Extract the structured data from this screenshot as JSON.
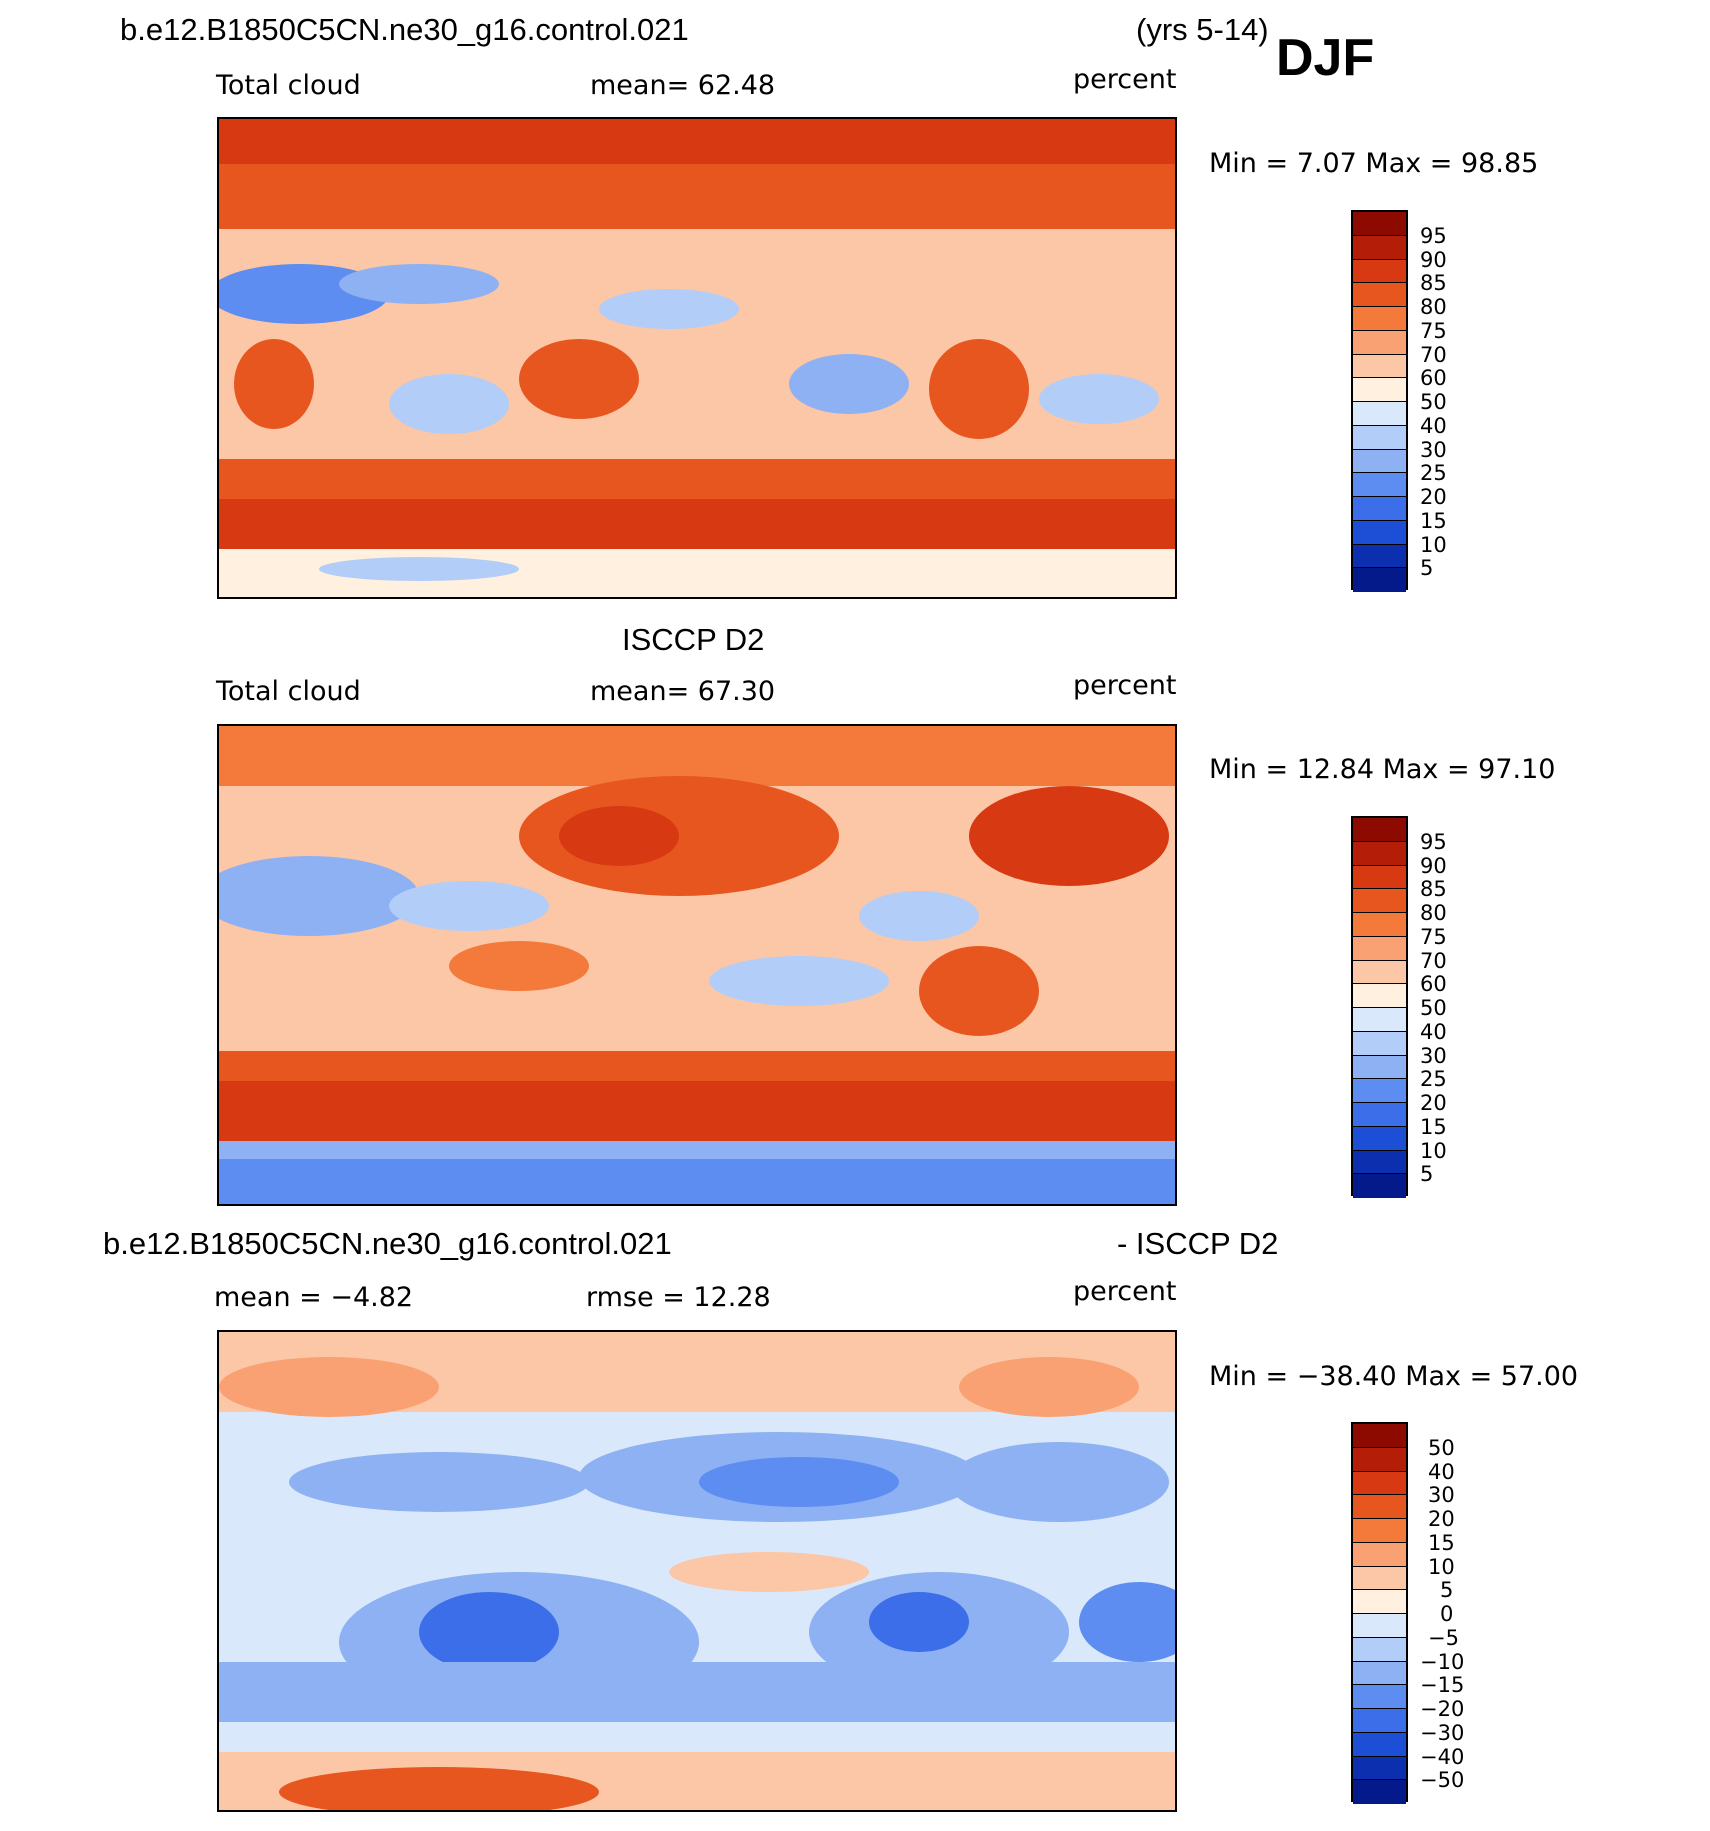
{
  "header": {
    "case_name": "b.e12.B1850C5CN.ne30_g16.control.021",
    "years": "(yrs 5-14)",
    "season": "DJF"
  },
  "panels": [
    {
      "id": "model",
      "left_label": "Total cloud",
      "center_label": "mean=   62.48",
      "right_label": "percent",
      "minmax": "Min =    7.07  Max =    98.85",
      "levels": [
        "95",
        "90",
        "85",
        "80",
        "75",
        "70",
        "60",
        "50",
        "40",
        "30",
        "25",
        "20",
        "15",
        "10",
        "5"
      ],
      "colors": [
        "#8c0a00",
        "#b41e08",
        "#d73a12",
        "#e8561f",
        "#f47a3c",
        "#f9a172",
        "#fcc7a6",
        "#fff0e0",
        "#d9e8fa",
        "#b2cdf7",
        "#8db1f2",
        "#5d8df0",
        "#3b6ee8",
        "#1c4ed6",
        "#0c2fb0",
        "#051a8a"
      ]
    },
    {
      "id": "obs",
      "title": "ISCCP D2",
      "left_label": "Total cloud",
      "center_label": "mean=   67.30",
      "right_label": "percent",
      "minmax": "Min =   12.84  Max =    97.10",
      "levels": [
        "95",
        "90",
        "85",
        "80",
        "75",
        "70",
        "60",
        "50",
        "40",
        "30",
        "25",
        "20",
        "15",
        "10",
        "5"
      ],
      "colors": [
        "#8c0a00",
        "#b41e08",
        "#d73a12",
        "#e8561f",
        "#f47a3c",
        "#f9a172",
        "#fcc7a6",
        "#fff0e0",
        "#d9e8fa",
        "#b2cdf7",
        "#8db1f2",
        "#5d8df0",
        "#3b6ee8",
        "#1c4ed6",
        "#0c2fb0",
        "#051a8a"
      ]
    },
    {
      "id": "diff",
      "title_left": "b.e12.B1850C5CN.ne30_g16.control.021",
      "title_right": "- ISCCP D2",
      "left_label": "mean  =   −4.82",
      "center_label": "rmse  =    12.28",
      "right_label": "percent",
      "minmax": "Min  =  −38.40  Max  =    57.00",
      "levels": [
        "50",
        "40",
        "30",
        "20",
        "15",
        "10",
        "5",
        "0",
        "−5",
        "−10",
        "−15",
        "−20",
        "−30",
        "−40",
        "−50"
      ],
      "colors": [
        "#8c0a00",
        "#b41e08",
        "#d73a12",
        "#e8561f",
        "#f47a3c",
        "#f9a172",
        "#fcc7a6",
        "#fff0e0",
        "#d9e8fa",
        "#b2cdf7",
        "#8db1f2",
        "#5d8df0",
        "#3b6ee8",
        "#1c4ed6",
        "#0c2fb0",
        "#051a8a"
      ]
    }
  ]
}
